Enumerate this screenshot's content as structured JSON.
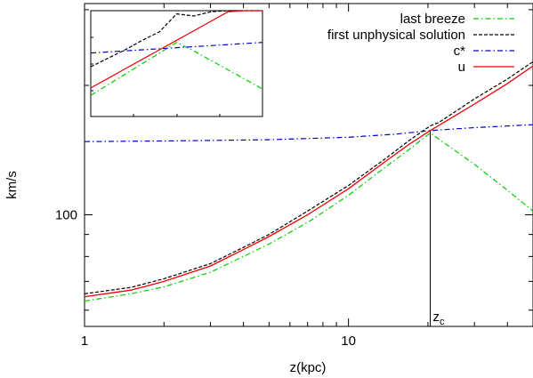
{
  "chart_data": {
    "type": "line",
    "xlabel": "z(kpc)",
    "ylabel": "km/s",
    "xscale": "log",
    "yscale": "log",
    "xlim": [
      1,
      50
    ],
    "ylim": [
      55,
      310
    ],
    "x_ticks": [
      {
        "value": 1,
        "label": "1"
      },
      {
        "value": 10,
        "label": "10"
      }
    ],
    "y_ticks": [
      {
        "value": 100,
        "label": "100"
      }
    ],
    "annotation": {
      "text": "z",
      "subscript": "c",
      "x": 20.4
    },
    "legend_position": "top-right",
    "series": [
      {
        "name": "last breeze",
        "color": "#00cc00",
        "dash": "dash-dot",
        "x": [
          1,
          1.5,
          2,
          3,
          4,
          5,
          7,
          10,
          14,
          17,
          20.4,
          30,
          40,
          50
        ],
        "y": [
          63,
          65.5,
          68,
          73.5,
          80,
          85.5,
          96,
          111,
          130,
          142,
          155,
          131,
          114,
          102
        ]
      },
      {
        "name": "first unphysical solution",
        "color": "#000000",
        "dash": "dashed",
        "x": [
          1,
          1.5,
          2,
          3,
          4,
          5,
          7,
          10,
          14,
          17,
          19.5,
          20.4,
          22,
          30,
          40,
          50
        ],
        "y": [
          65.5,
          67.8,
          71,
          77,
          84,
          90,
          102,
          117,
          136,
          149,
          158,
          161,
          164,
          186,
          207,
          227
        ]
      },
      {
        "name": "c*",
        "color": "#0000cc",
        "dash": "dash-dot",
        "x": [
          1,
          2,
          5,
          10,
          15,
          20.4,
          30,
          50
        ],
        "y": [
          148,
          148.5,
          149.5,
          151.5,
          154,
          157,
          159.5,
          162
        ]
      },
      {
        "name": "u",
        "color": "#ee0000",
        "dash": "solid",
        "x": [
          1,
          1.5,
          2,
          3,
          4,
          5,
          7,
          10,
          14,
          17,
          20.4,
          30,
          40,
          50
        ],
        "y": [
          64.5,
          66.8,
          70,
          76,
          83,
          89,
          100,
          115,
          134,
          146,
          157,
          181,
          202,
          222
        ]
      }
    ],
    "inset": {
      "description_source": "zoom near critical point",
      "x": [
        0,
        1,
        2,
        3,
        4,
        5,
        6,
        7,
        8,
        9,
        10
      ],
      "series": [
        {
          "name": "last breeze",
          "y": [
            0.2,
            0.3,
            0.4,
            0.5,
            0.6,
            0.7,
            0.62,
            0.53,
            0.44,
            0.35,
            0.26
          ]
        },
        {
          "name": "first unphysical solution",
          "y": [
            0.47,
            0.55,
            0.63,
            0.72,
            0.8,
            0.97,
            0.95,
            0.99,
            1.04,
            1.1,
            1.16
          ]
        },
        {
          "name": "c*",
          "y": [
            0.6,
            0.61,
            0.62,
            0.63,
            0.64,
            0.65,
            0.66,
            0.67,
            0.68,
            0.69,
            0.7
          ]
        },
        {
          "name": "u",
          "y": [
            0.27,
            0.36,
            0.45,
            0.54,
            0.63,
            0.72,
            0.81,
            0.9,
            0.99,
            1.08,
            1.17
          ]
        }
      ]
    }
  }
}
